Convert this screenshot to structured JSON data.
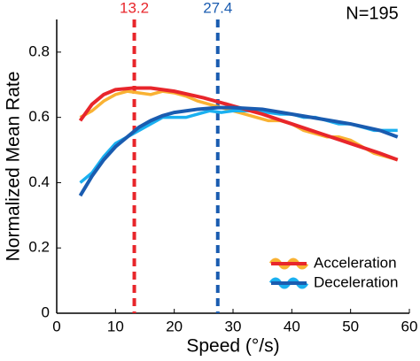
{
  "chart_data": {
    "type": "line",
    "annotation": "N=195",
    "x_label": "Speed (°/s)",
    "y_label": "Normalized Mean Rate",
    "xlim": [
      0,
      60
    ],
    "xticks": [
      0,
      10,
      20,
      30,
      40,
      50,
      60
    ],
    "ylim": [
      0,
      0.9
    ],
    "yticks": [
      0,
      0.2,
      0.4,
      0.6,
      0.8
    ],
    "legend": "lower right",
    "vlines": [
      {
        "x": 13.2,
        "color": "#e8262b"
      },
      {
        "x": 27.4,
        "color": "#1a5cb0"
      }
    ],
    "series": [
      {
        "name": "Acceleration",
        "color": "#f9b233",
        "fit_color": "#e8262b",
        "x": [
          4,
          6,
          8,
          10,
          12,
          14,
          16,
          18,
          20,
          22,
          24,
          26,
          28,
          30,
          32,
          34,
          36,
          38,
          40,
          42,
          44,
          46,
          48,
          50,
          52,
          54,
          56,
          58
        ],
        "values": [
          0.6,
          0.62,
          0.65,
          0.67,
          0.68,
          0.675,
          0.67,
          0.68,
          0.675,
          0.665,
          0.65,
          0.64,
          0.63,
          0.62,
          0.61,
          0.6,
          0.59,
          0.59,
          0.58,
          0.56,
          0.55,
          0.54,
          0.54,
          0.53,
          0.51,
          0.49,
          0.48,
          0.47
        ],
        "fit_x": [
          4,
          6,
          8,
          10,
          13,
          16,
          20,
          25,
          30,
          35,
          40,
          45,
          50,
          55,
          58
        ],
        "fit_values": [
          0.59,
          0.64,
          0.67,
          0.685,
          0.69,
          0.69,
          0.68,
          0.66,
          0.635,
          0.61,
          0.58,
          0.55,
          0.52,
          0.49,
          0.47
        ]
      },
      {
        "name": "Deceleration",
        "color": "#1ab0f0",
        "fit_color": "#1a5cb0",
        "x": [
          4,
          6,
          8,
          10,
          12,
          14,
          16,
          18,
          20,
          22,
          24,
          26,
          28,
          30,
          32,
          34,
          36,
          38,
          40,
          42,
          44,
          46,
          48,
          50,
          52,
          54,
          56,
          58
        ],
        "values": [
          0.4,
          0.43,
          0.48,
          0.52,
          0.54,
          0.56,
          0.58,
          0.6,
          0.6,
          0.6,
          0.61,
          0.62,
          0.615,
          0.62,
          0.62,
          0.62,
          0.615,
          0.61,
          0.61,
          0.6,
          0.6,
          0.59,
          0.58,
          0.58,
          0.57,
          0.56,
          0.56,
          0.56
        ],
        "fit_x": [
          4,
          6,
          8,
          10,
          12,
          14,
          16,
          18,
          20,
          24,
          27.4,
          30,
          35,
          40,
          45,
          50,
          55,
          58
        ],
        "fit_values": [
          0.36,
          0.42,
          0.47,
          0.51,
          0.54,
          0.57,
          0.59,
          0.605,
          0.615,
          0.625,
          0.63,
          0.63,
          0.625,
          0.61,
          0.595,
          0.58,
          0.56,
          0.54
        ]
      }
    ]
  }
}
